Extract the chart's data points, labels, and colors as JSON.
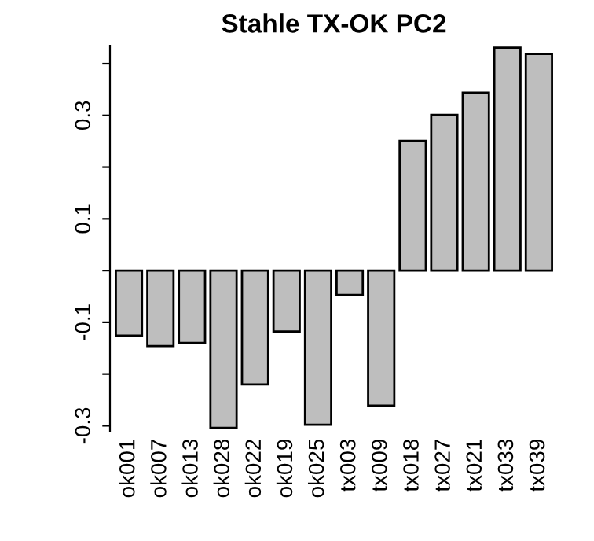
{
  "chart_data": {
    "type": "bar",
    "title": "Stahle TX-OK PC2",
    "categories": [
      "ok001",
      "ok007",
      "ok013",
      "ok028",
      "ok022",
      "ok019",
      "ok025",
      "tx003",
      "tx009",
      "tx018",
      "tx027",
      "tx021",
      "tx033",
      "tx039"
    ],
    "values": [
      -0.126,
      -0.146,
      -0.14,
      -0.304,
      -0.22,
      -0.118,
      -0.298,
      -0.047,
      -0.261,
      0.251,
      0.301,
      0.344,
      0.431,
      0.419
    ],
    "color": "#bebebe",
    "ylim": [
      -0.31,
      0.435
    ],
    "yticks": [
      -0.3,
      {
        "value": -0.2,
        "label": null
      },
      -0.1,
      {
        "value": 0,
        "label": null
      },
      0.1,
      {
        "value": 0.2,
        "label": null
      },
      0.3,
      {
        "value": 0.4,
        "label": null
      }
    ],
    "grid": false
  }
}
